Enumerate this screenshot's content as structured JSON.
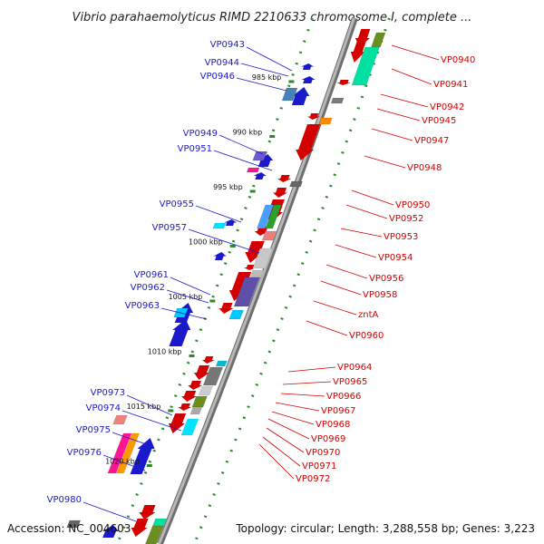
{
  "title": "Vibrio parahaemolyticus RIMD 2210633 chromosome I, complete ...",
  "accession": "Accession: NC_004603",
  "topology": "Topology: circular; Length: 3,288,558 bp; Genes: 3,223",
  "colors": {
    "plus": "#d40000",
    "minus": "#1a1acc",
    "backbone": "#8a8a8a",
    "tick": "#2a8a2a"
  },
  "ticks": [
    {
      "label": "985 kbp",
      "kbp": 985
    },
    {
      "label": "990 kbp",
      "kbp": 990
    },
    {
      "label": "995 kbp",
      "kbp": 995
    },
    {
      "label": "1000 kbp",
      "kbp": 1000
    },
    {
      "label": "1005 kbp",
      "kbp": 1005
    },
    {
      "label": "1010 kbp",
      "kbp": 1010
    },
    {
      "label": "1015 kbp",
      "kbp": 1015
    },
    {
      "label": "1020 kbp",
      "kbp": 1020
    }
  ],
  "minus_genes": [
    {
      "label": "VP0943"
    },
    {
      "label": "VP0944"
    },
    {
      "label": "VP0946"
    },
    {
      "label": "VP0949"
    },
    {
      "label": "VP0951"
    },
    {
      "label": "VP0955"
    },
    {
      "label": "VP0957"
    },
    {
      "label": "VP0961"
    },
    {
      "label": "VP0962"
    },
    {
      "label": "VP0963"
    },
    {
      "label": "VP0973"
    },
    {
      "label": "VP0974"
    },
    {
      "label": "VP0975"
    },
    {
      "label": "VP0976"
    },
    {
      "label": "VP0980"
    }
  ],
  "plus_genes": [
    {
      "label": "VP0940"
    },
    {
      "label": "VP0941"
    },
    {
      "label": "VP0942"
    },
    {
      "label": "VP0945"
    },
    {
      "label": "VP0947"
    },
    {
      "label": "VP0948"
    },
    {
      "label": "VP0950"
    },
    {
      "label": "VP0952"
    },
    {
      "label": "VP0953"
    },
    {
      "label": "VP0954"
    },
    {
      "label": "VP0956"
    },
    {
      "label": "VP0958"
    },
    {
      "label": "zntA"
    },
    {
      "label": "VP0960"
    },
    {
      "label": "VP0964"
    },
    {
      "label": "VP0965"
    },
    {
      "label": "VP0966"
    },
    {
      "label": "VP0967"
    },
    {
      "label": "VP0968"
    },
    {
      "label": "VP0969"
    },
    {
      "label": "VP0970"
    },
    {
      "label": "VP0971"
    },
    {
      "label": "VP0972"
    }
  ]
}
